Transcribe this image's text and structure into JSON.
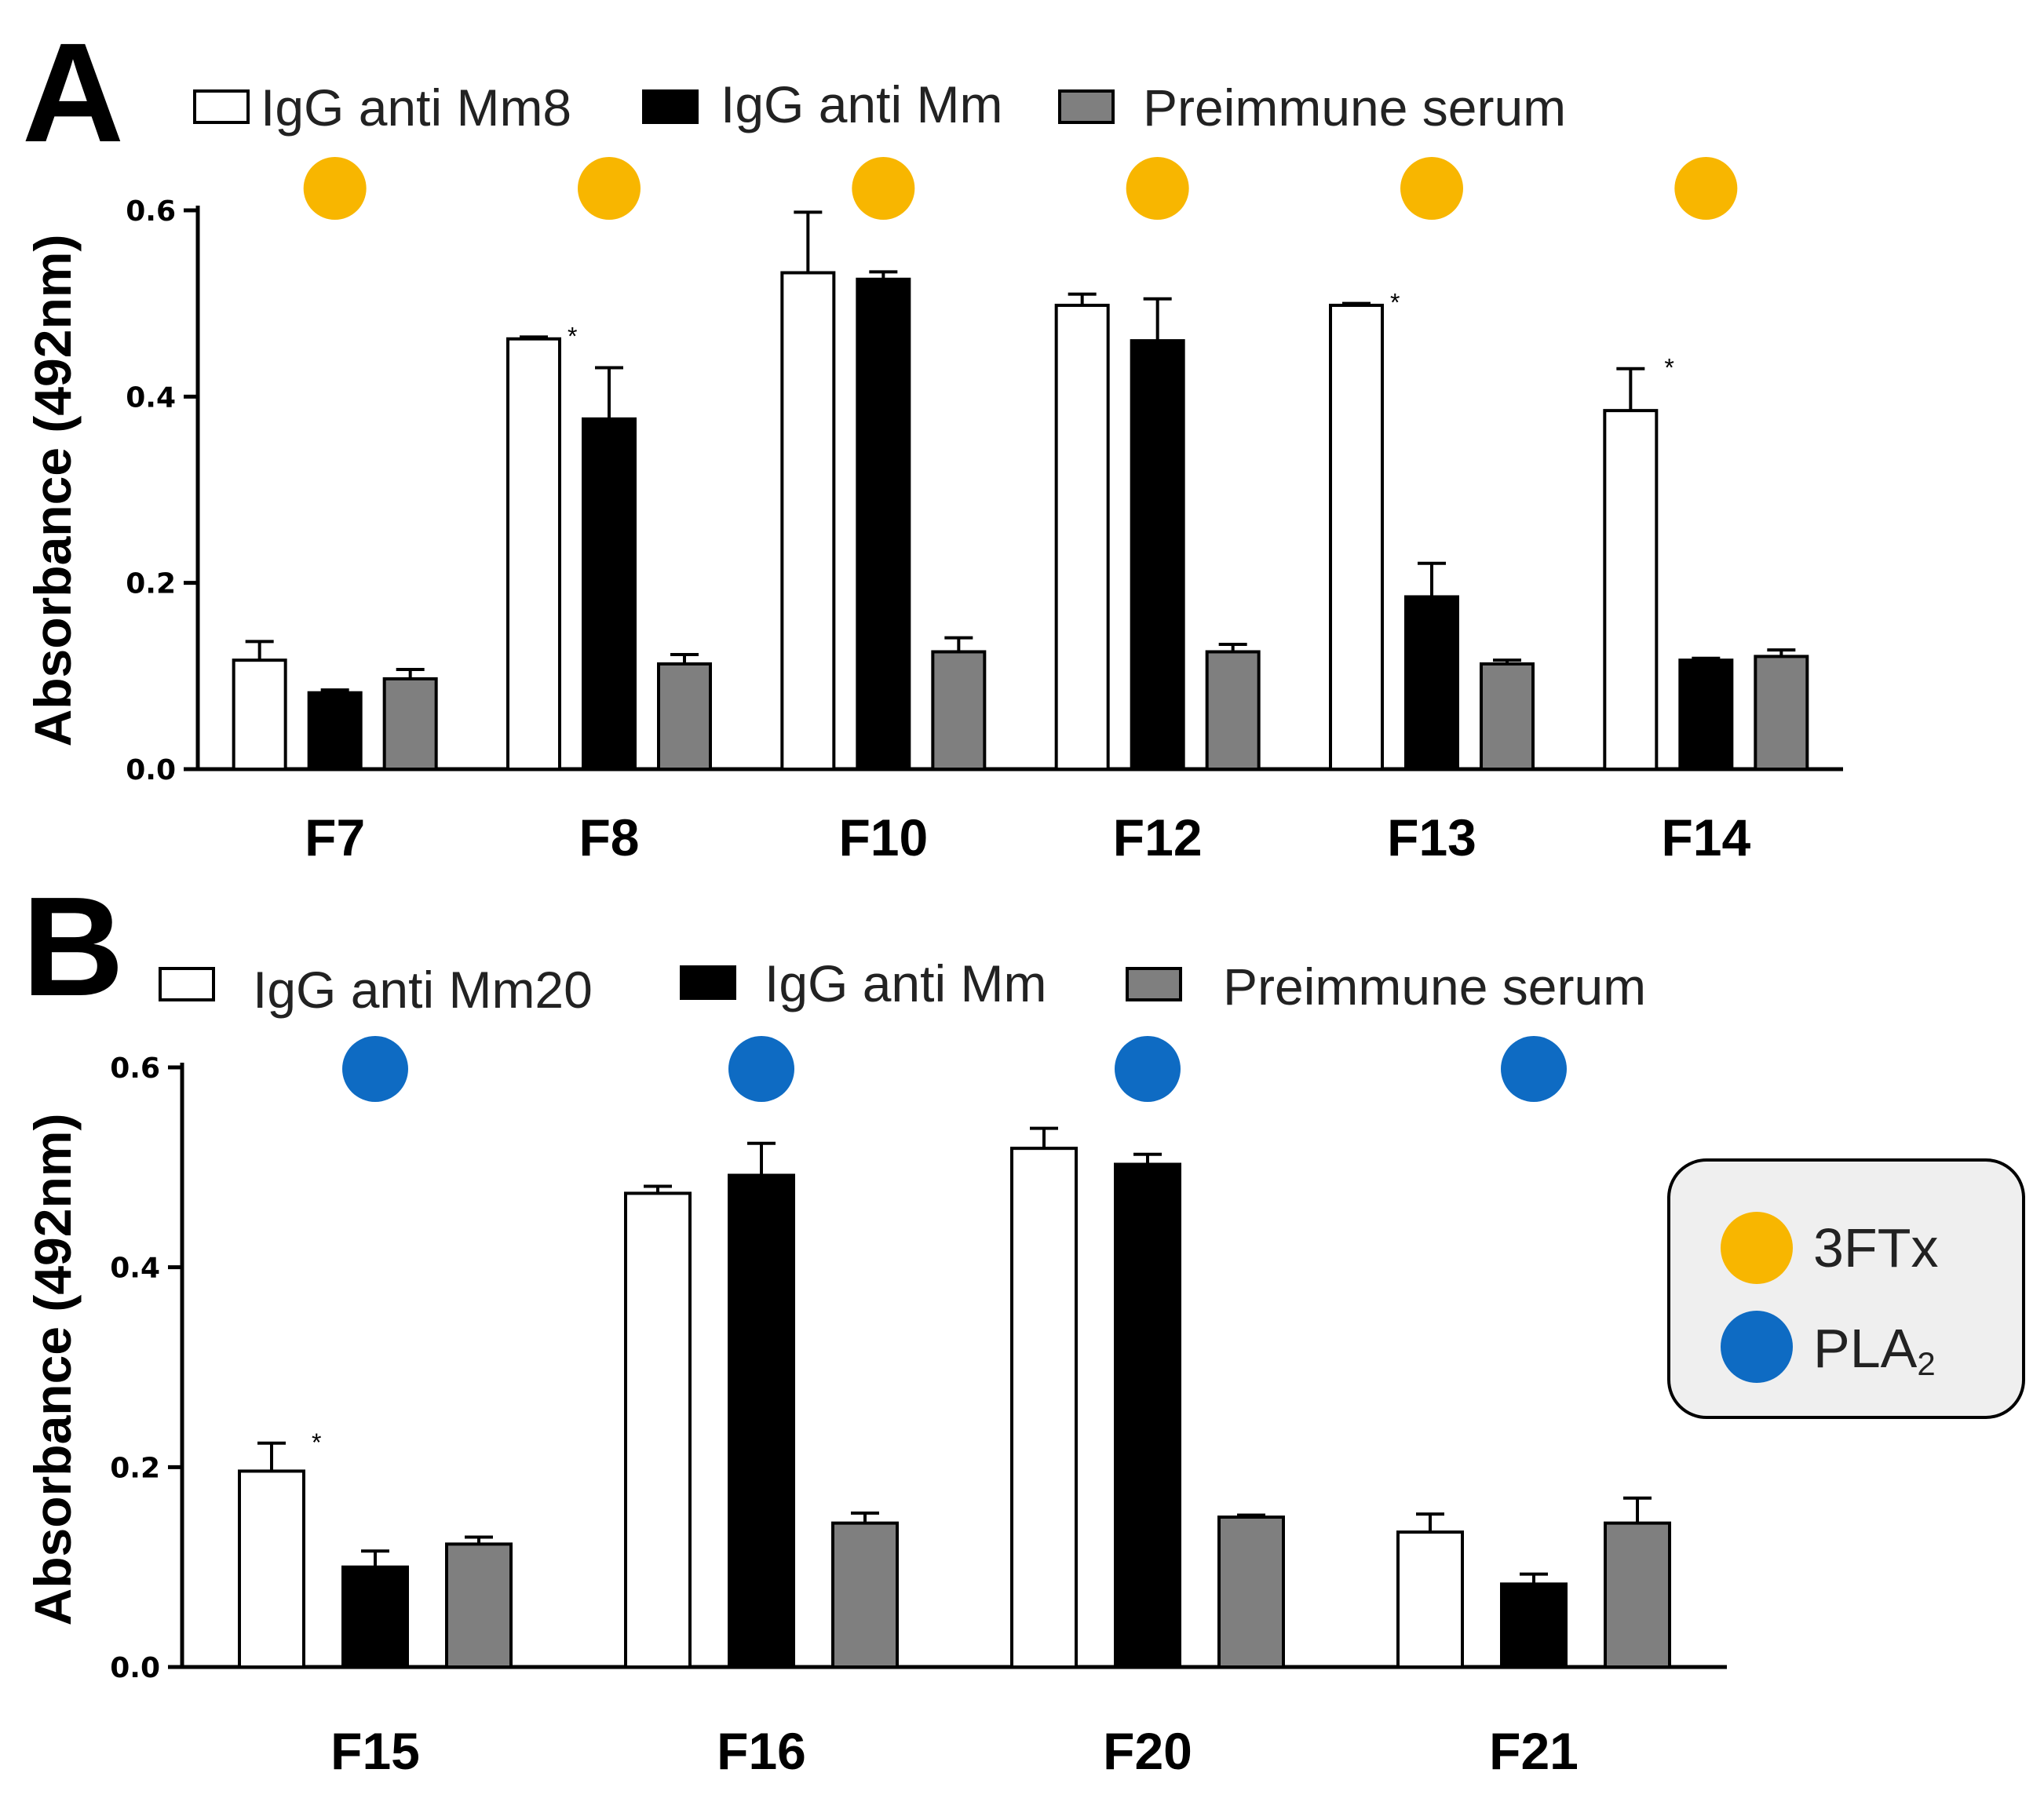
{
  "colors": {
    "series_fills": [
      "#ffffff",
      "#000000",
      "#7f7f7f"
    ],
    "series_strokes": [
      "#000000",
      "#000000",
      "#000000"
    ],
    "threeftx": "#f8b600",
    "pla2": "#0e6bc3",
    "key_box": "#efefef"
  },
  "key": {
    "items": [
      {
        "label": "3FTx",
        "color": "#f8b600"
      },
      {
        "label": "PLA",
        "sub": "2",
        "color": "#0e6bc3"
      }
    ]
  },
  "chart_data": [
    {
      "panel": "A",
      "type": "bar",
      "ylabel": "Absorbance (492nm)",
      "ylim": [
        0,
        0.6
      ],
      "yticks": [
        "0.0",
        "0.2",
        "0.4",
        "0.6"
      ],
      "categories": [
        "F7",
        "F8",
        "F10",
        "F12",
        "F13",
        "F14"
      ],
      "toxin_marker": "3FTx",
      "legend": [
        "IgG anti Mm8",
        "IgG anti Mm",
        "Preimmune serum"
      ],
      "series": [
        {
          "name": "IgG anti Mm8",
          "values": [
            0.117,
            0.462,
            0.533,
            0.498,
            0.498,
            0.385
          ],
          "errors": [
            0.02,
            0.002,
            0.065,
            0.012,
            0.002,
            0.045
          ]
        },
        {
          "name": "IgG anti Mm",
          "values": [
            0.082,
            0.376,
            0.526,
            0.46,
            0.185,
            0.117
          ],
          "errors": [
            0.003,
            0.055,
            0.008,
            0.045,
            0.036,
            0.002
          ]
        },
        {
          "name": "Preimmune serum",
          "values": [
            0.097,
            0.113,
            0.126,
            0.126,
            0.113,
            0.121
          ],
          "errors": [
            0.01,
            0.01,
            0.015,
            0.008,
            0.004,
            0.007
          ]
        }
      ],
      "significance": [
        {
          "category": "F8",
          "series": "IgG anti Mm8",
          "label": "*"
        },
        {
          "category": "F13",
          "series": "IgG anti Mm8",
          "label": "*"
        },
        {
          "category": "F14",
          "series": "IgG anti Mm8",
          "label": "*"
        }
      ]
    },
    {
      "panel": "B",
      "type": "bar",
      "ylabel": "Absorbance (492nm)",
      "ylim": [
        0,
        0.6
      ],
      "yticks": [
        "0.0",
        "0.2",
        "0.4",
        "0.6"
      ],
      "categories": [
        "F15",
        "F16",
        "F20",
        "F21"
      ],
      "toxin_marker": "PLA2",
      "legend": [
        "IgG anti Mm20",
        "IgG anti Mm",
        "Preimmune serum"
      ],
      "series": [
        {
          "name": "IgG anti Mm20",
          "values": [
            0.196,
            0.474,
            0.519,
            0.135
          ],
          "errors": [
            0.028,
            0.007,
            0.02,
            0.018
          ]
        },
        {
          "name": "IgG anti Mm",
          "values": [
            0.1,
            0.492,
            0.503,
            0.083
          ],
          "errors": [
            0.016,
            0.032,
            0.01,
            0.01
          ]
        },
        {
          "name": "Preimmune serum",
          "values": [
            0.123,
            0.144,
            0.15,
            0.144
          ],
          "errors": [
            0.007,
            0.01,
            0.002,
            0.025
          ]
        }
      ],
      "significance": [
        {
          "category": "F15",
          "series": "IgG anti Mm20",
          "label": "*"
        }
      ]
    }
  ]
}
